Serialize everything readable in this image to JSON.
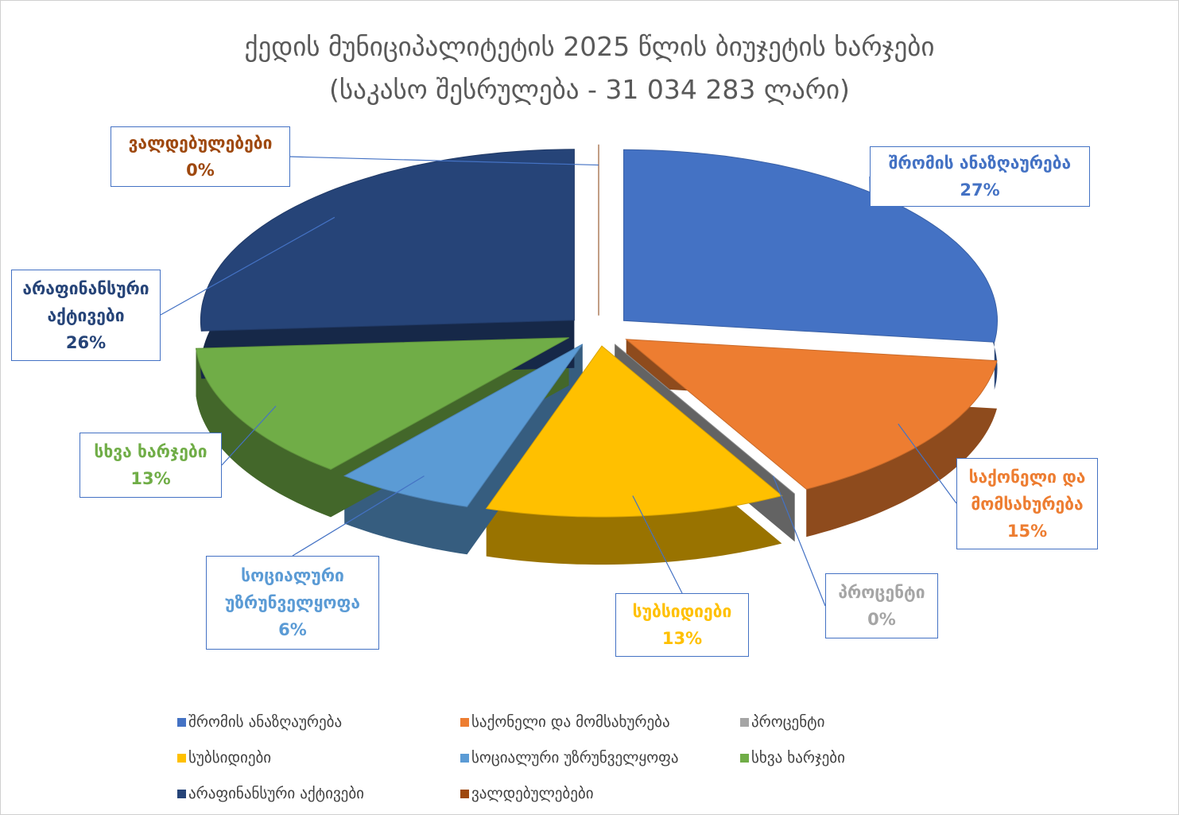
{
  "chart_data": {
    "type": "pie",
    "title": "ქედის მუნიციპალიტეტის 2025 წლის ბიუჯეტის ხარჯები",
    "subtitle": "(საკასო შესრულება - 31 034 283 ლარი)",
    "categories": [
      "შრომის ანაზღაურება",
      "საქონელი და მომსახურება",
      "პროცენტი",
      "სუბსიდიები",
      "სოციალური უზრუნველყოფა",
      "სხვა ხარჯები",
      "არაფინანსური აქტივები",
      "ვალდებულებები"
    ],
    "values": [
      27,
      15,
      0,
      13,
      6,
      13,
      26,
      0
    ],
    "value_labels": [
      "27%",
      "15%",
      "0%",
      "13%",
      "6%",
      "13%",
      "26%",
      "0%"
    ],
    "colors": [
      "#4472c4",
      "#ed7d31",
      "#a5a5a5",
      "#ffc000",
      "#5b9bd5",
      "#70ad47",
      "#264478",
      "#9e480e"
    ],
    "legend": "bottom"
  }
}
